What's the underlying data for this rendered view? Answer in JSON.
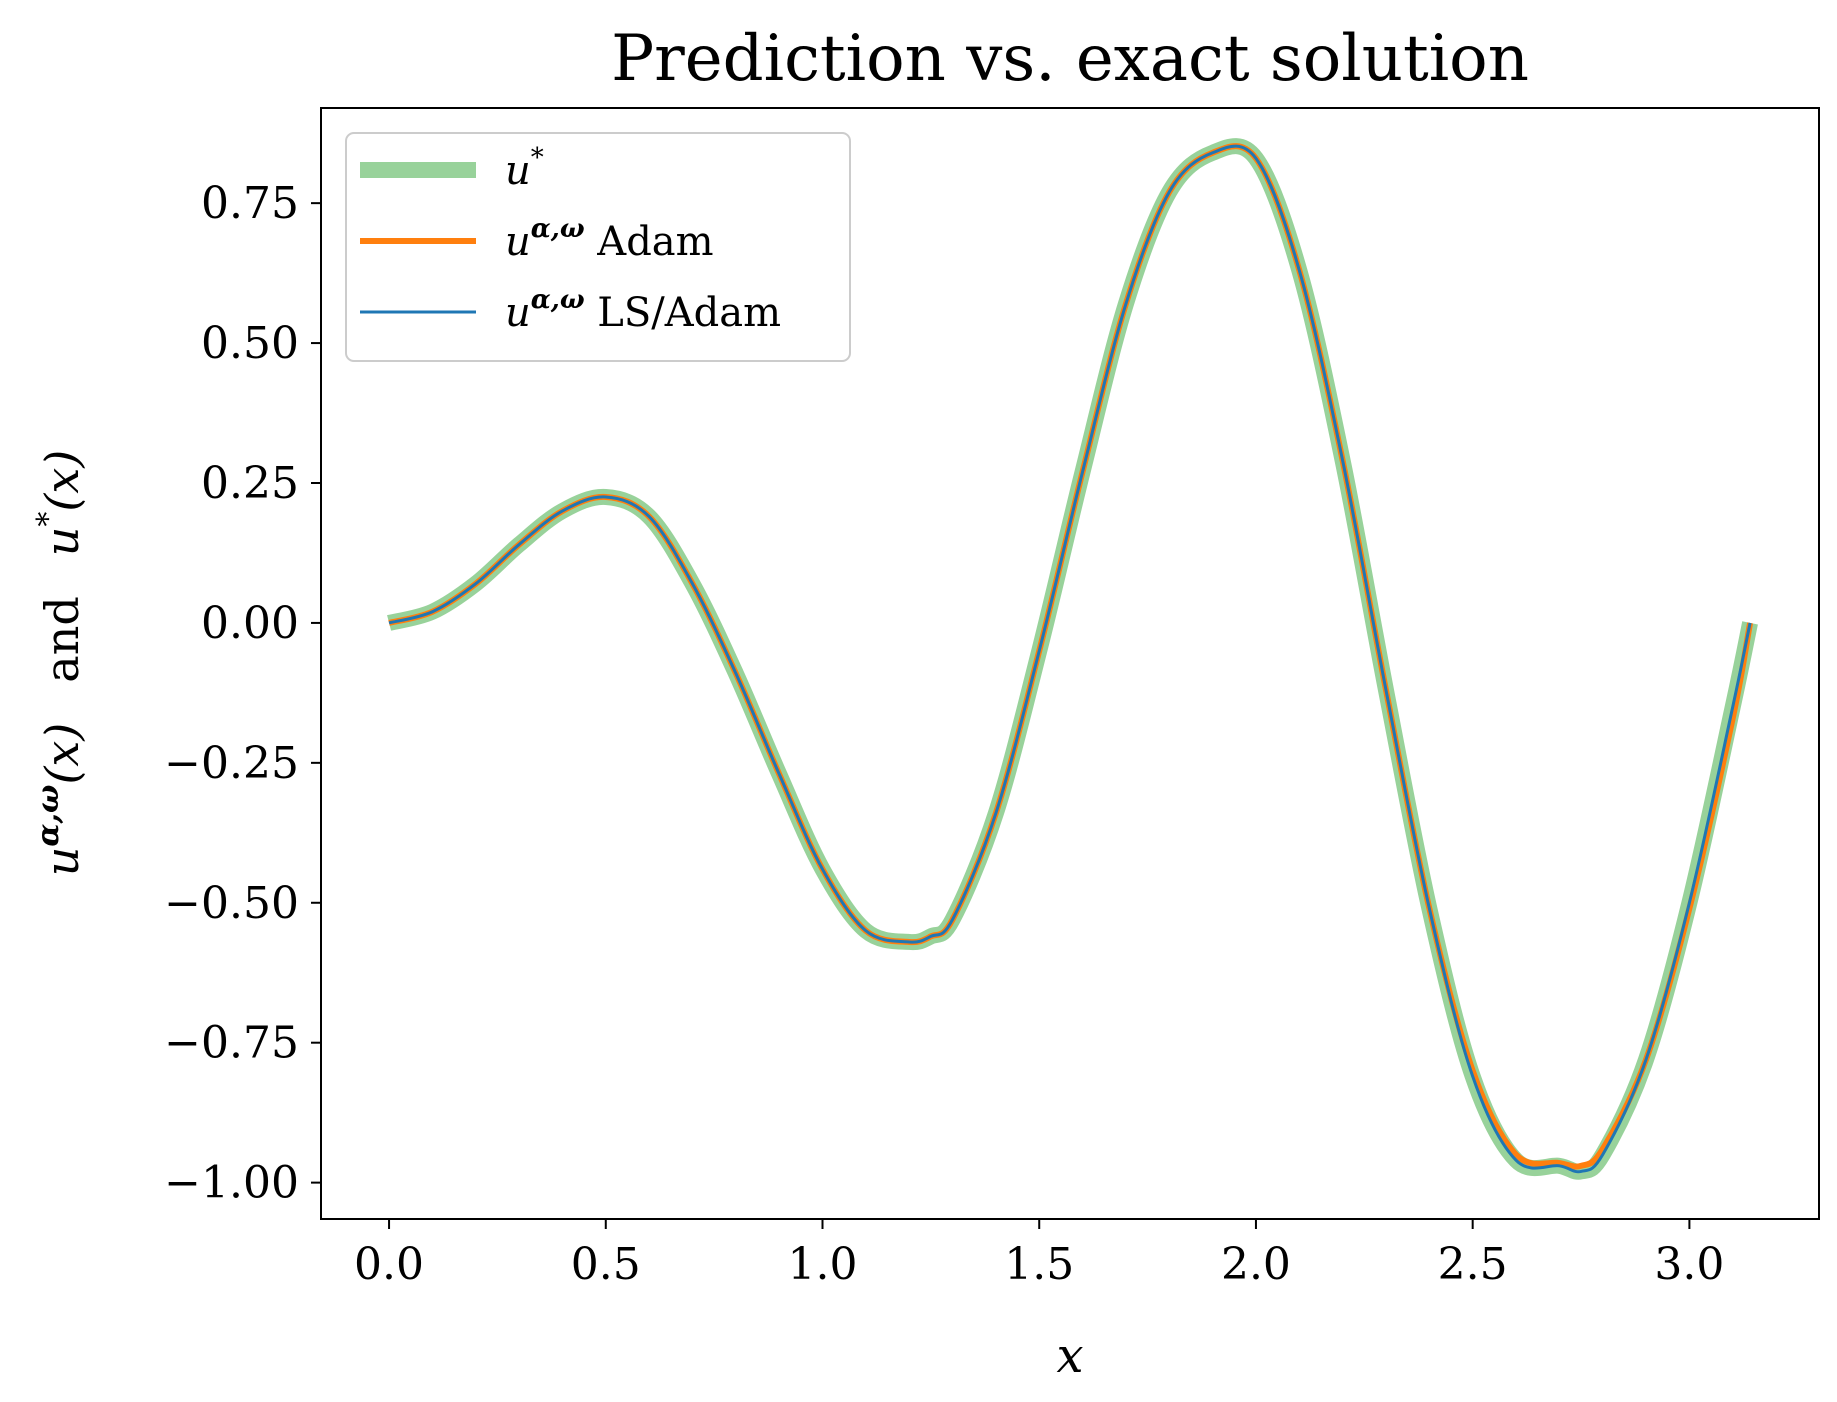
{
  "chart_data": {
    "type": "line",
    "title": "Prediction vs. exact solution",
    "xlabel": "x",
    "ylabel": "u^{α,ω}(x)   and   u*(x)",
    "xlim": [
      -0.157,
      3.299
    ],
    "ylim": [
      -1.065,
      0.92
    ],
    "xticks": [
      0.0,
      0.5,
      1.0,
      1.5,
      2.0,
      2.5,
      3.0
    ],
    "xtick_labels": [
      "0.0",
      "0.5",
      "1.0",
      "1.5",
      "2.0",
      "2.5",
      "3.0"
    ],
    "yticks": [
      0.75,
      0.5,
      0.25,
      0.0,
      -0.25,
      -0.5,
      -0.75,
      -1.0
    ],
    "ytick_labels": [
      "0.75",
      "0.50",
      "0.25",
      "0.00",
      "−0.25",
      "−0.50",
      "−0.75",
      "−1.00"
    ],
    "grid": false,
    "legend_position": "top-left",
    "legend": [
      {
        "label_main": "u",
        "label_sup": "*",
        "label_suffix": ""
      },
      {
        "label_main": "u",
        "label_sup": "α,ω",
        "label_suffix": " Adam"
      },
      {
        "label_main": "u",
        "label_sup": "α,ω",
        "label_suffix": " LS/Adam"
      }
    ],
    "x": [
      0.0,
      0.1,
      0.2,
      0.3,
      0.4,
      0.5,
      0.6,
      0.7,
      0.8,
      0.9,
      1.0,
      1.1,
      1.2,
      1.25,
      1.3,
      1.4,
      1.5,
      1.6,
      1.7,
      1.8,
      1.9,
      2.0,
      2.1,
      2.2,
      2.3,
      2.4,
      2.5,
      2.6,
      2.7,
      2.75,
      2.8,
      2.9,
      3.0,
      3.1,
      3.14
    ],
    "series": [
      {
        "name": "u*",
        "color": "#98d29a",
        "values": [
          0.0,
          0.02,
          0.07,
          0.14,
          0.2,
          0.225,
          0.19,
          0.07,
          -0.09,
          -0.27,
          -0.44,
          -0.55,
          -0.57,
          -0.56,
          -0.53,
          -0.34,
          -0.05,
          0.27,
          0.57,
          0.77,
          0.84,
          0.83,
          0.63,
          0.29,
          -0.12,
          -0.51,
          -0.81,
          -0.96,
          -0.97,
          -0.98,
          -0.95,
          -0.78,
          -0.5,
          -0.15,
          0.0
        ]
      },
      {
        "name": "u^{α,ω} Adam",
        "color": "#ff7f0e",
        "values": [
          0.0,
          0.02,
          0.07,
          0.14,
          0.2,
          0.225,
          0.19,
          0.07,
          -0.09,
          -0.27,
          -0.44,
          -0.55,
          -0.57,
          -0.56,
          -0.53,
          -0.34,
          -0.05,
          0.27,
          0.57,
          0.77,
          0.84,
          0.83,
          0.63,
          0.29,
          -0.12,
          -0.51,
          -0.8,
          -0.95,
          -0.965,
          -0.97,
          -0.94,
          -0.78,
          -0.51,
          -0.17,
          0.0
        ]
      },
      {
        "name": "u^{α,ω} LS/Adam",
        "color": "#1f77b4",
        "values": [
          0.0,
          0.02,
          0.07,
          0.14,
          0.2,
          0.225,
          0.19,
          0.07,
          -0.09,
          -0.27,
          -0.44,
          -0.55,
          -0.57,
          -0.56,
          -0.53,
          -0.34,
          -0.05,
          0.27,
          0.57,
          0.77,
          0.84,
          0.83,
          0.63,
          0.29,
          -0.12,
          -0.51,
          -0.81,
          -0.96,
          -0.97,
          -0.98,
          -0.95,
          -0.78,
          -0.5,
          -0.15,
          0.0
        ]
      }
    ]
  },
  "title_text": "Prediction vs. exact solution",
  "xlabel_text": "x",
  "ylabel_parts": {
    "left_main": "u",
    "left_sup": "α,ω",
    "left_arg": "(x)",
    "middle": "and",
    "right_main": "u",
    "right_sup": "*",
    "right_arg": "(x)"
  }
}
